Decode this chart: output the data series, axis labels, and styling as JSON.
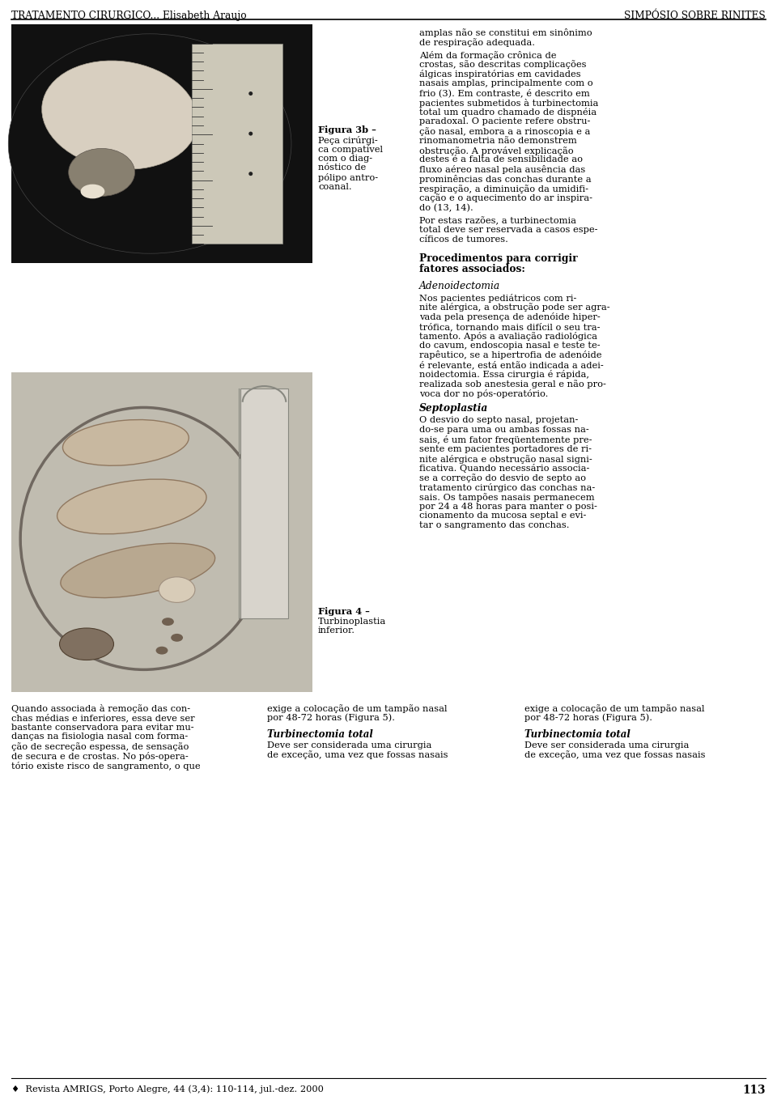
{
  "header_left": "TRATAMENTO CIRURGICO... Elisabeth Araujo",
  "header_right": "SIMPÓSIO SOBRE RINITES",
  "footer_text": "♦  Revista AMRIGS, Porto Alegre, 44 (3,4): 110-114, jul.-dez. 2000",
  "footer_page": "113",
  "fig3b_caption_bold": "Figura 3b –",
  "fig3b_caption_lines": [
    "Peça cirúrgi-",
    "ca compatível",
    "com o diag-",
    "nóstico de",
    "pólipo antro-",
    "coanal."
  ],
  "fig4_caption_bold": "Figura 4 –",
  "fig4_caption_lines": [
    "Turbinoplastia",
    "inferior."
  ],
  "col_right_top_lines": [
    "amplas não se constitui em sinônimo",
    "de respiração adequada."
  ],
  "col_right_para2_lines": [
    "Além da formação crônica de",
    "crostas, são descritas complicações",
    "álgicas inspiratórias em cavidades",
    "nasais amplas, principalmente com o",
    "frio (3). Em contraste, é descrito em",
    "pacientes submetidos à turbinectomia",
    "total um quadro chamado de dispnéia",
    "paradoxal. O paciente refere obstru-",
    "ção nasal, embora a a rinoscopia e a",
    "rinomanometria não demonstrem",
    "obstrução. A provável explicação",
    "destes é a falta de sensibilidade ao",
    "fluxo aéreo nasal pela ausência das",
    "prominências das conchas durante a",
    "respiração, a diminuição da umidifi-",
    "cação e o aquecimento do ar inspira-",
    "do (13, 14)."
  ],
  "col_right_para3_lines": [
    "Por estas razões, a turbinectomia",
    "total deve ser reservada a casos espe-",
    "cíficos de tumores."
  ],
  "col_right_heading1_lines": [
    "Procedimentos para corrigir",
    "fatores associados:"
  ],
  "col_right_heading2": "Adenoidectomia",
  "col_right_para4_lines": [
    "Nos pacientes pediátricos com ri-",
    "nite alérgica, a obstrução pode ser agra-",
    "vada pela presença de adenóide hiper-",
    "trófica, tornando mais difícil o seu tra-",
    "tamento. Após a avaliação radiológica",
    "do cavum, endoscopia nasal e teste te-",
    "rapêutico, se a hipertrofia de adenóide",
    "é relevante, está então indicada a adei-",
    "noidectomia. Essa cirurgia é rápida,",
    "realizada sob anestesia geral e não pro-",
    "voca dor no pós-operatório."
  ],
  "col_right_heading3": "Septoplastia",
  "col_right_para5_lines": [
    "O desvio do septo nasal, projetan-",
    "do-se para uma ou ambas fossas na-",
    "sais, é um fator freqüentemente pre-",
    "sente em pacientes portadores de ri-",
    "nite alérgica e obstrução nasal signi-",
    "ficativa. Quando necessário associa-",
    "se a correção do desvio de septo ao",
    "tratamento cirúrgico das conchas na-",
    "sais. Os tampões nasais permanecem",
    "por 24 a 48 horas para manter o posi-",
    "cionamento da mucosa septal e evi-",
    "tar o sangramento das conchas."
  ],
  "col1_bottom_lines": [
    "Quando associada à remoção das con-",
    "chas médias e inferiores, essa deve ser",
    "bastante conservadora para evitar mu-",
    "danças na fisiologia nasal com forma-",
    "ção de secreção espessa, de sensação",
    "de secura e de crostas. No pós-opera-",
    "tório existe risco de sangramento, o que"
  ],
  "col2_bottom_lines": [
    "exige a colocação de um tampão nasal",
    "por 48-72 horas (Figura 5)."
  ],
  "col2_bottom_heading": "Turbinectomia total",
  "col2_bottom_para_lines": [
    "Deve ser considerada uma cirurgia",
    "de exceção, uma vez que fossas nasais"
  ],
  "col3_bottom_lines": [
    "exige a colocação de um tampão nasal",
    "por 48-72 horas (Figura 5)."
  ],
  "col3_bottom_heading": "Turbinectomia total",
  "col3_bottom_para_lines": [
    "Deve ser considerada uma cirurgia",
    "de exceção, uma vez que fossas nasais"
  ],
  "bg_color": "#ffffff",
  "text_color": "#000000"
}
